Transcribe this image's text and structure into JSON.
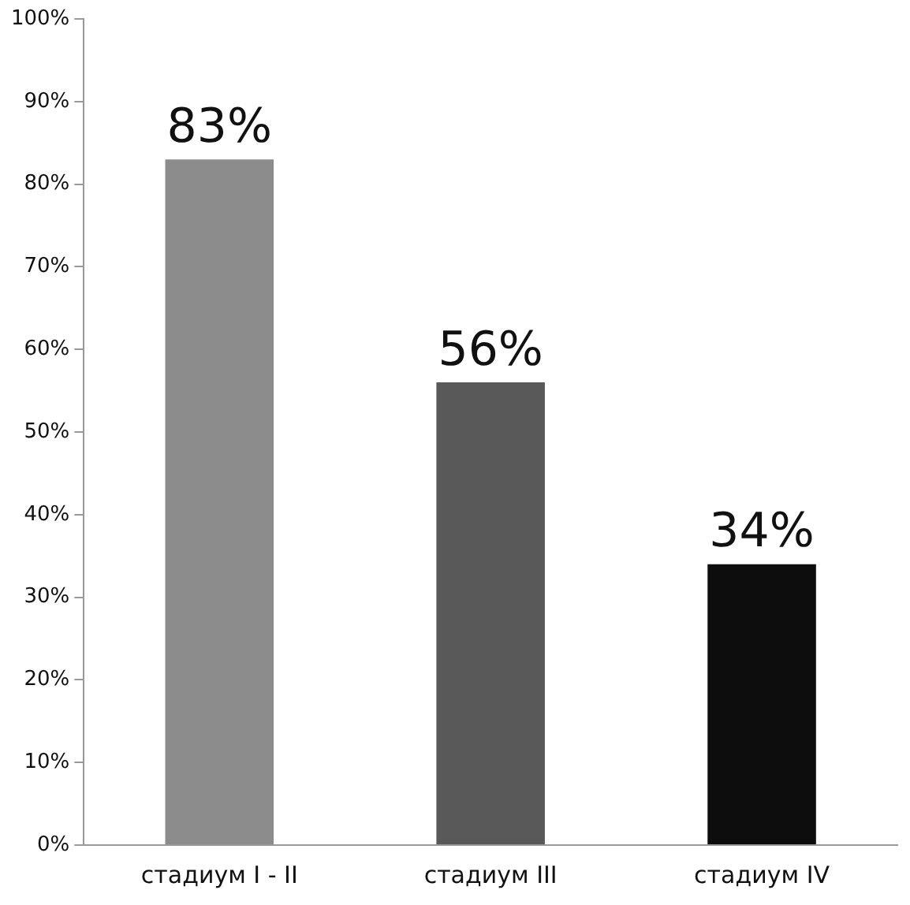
{
  "chart_data": {
    "type": "bar",
    "categories": [
      "стадиум I - II",
      "стадиум III",
      "стадиум IV"
    ],
    "values": [
      83,
      56,
      34
    ],
    "colors": [
      "#8c8c8c",
      "#595959",
      "#0d0d0d"
    ],
    "value_labels": [
      "83%",
      "56%",
      "34%"
    ],
    "ylim": [
      0,
      100
    ],
    "yticks": [
      {
        "value": 0,
        "label": "0%"
      },
      {
        "value": 10,
        "label": "10%"
      },
      {
        "value": 20,
        "label": "20%"
      },
      {
        "value": 30,
        "label": "30%"
      },
      {
        "value": 40,
        "label": "40%"
      },
      {
        "value": 50,
        "label": "50%"
      },
      {
        "value": 60,
        "label": "60%"
      },
      {
        "value": 70,
        "label": "70%"
      },
      {
        "value": 80,
        "label": "80%"
      },
      {
        "value": 90,
        "label": "90%"
      },
      {
        "value": 100,
        "label": "100%"
      }
    ],
    "grid": false,
    "legend": false
  }
}
